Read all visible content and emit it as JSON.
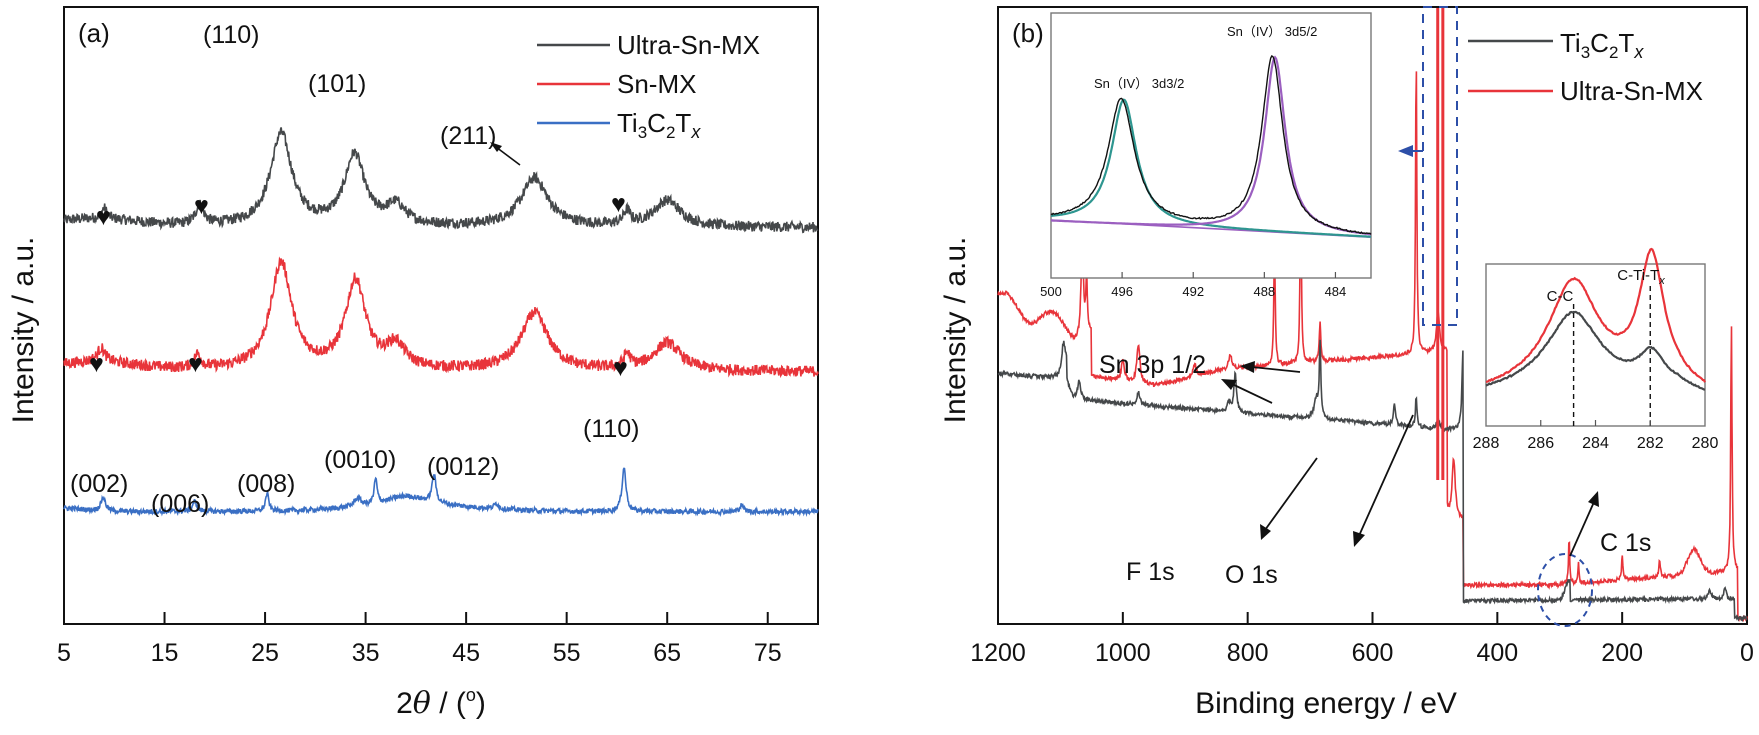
{
  "chart_data": [
    {
      "panel": "(a)",
      "type": "line",
      "title": "",
      "xlabel": "2θ / (°)",
      "ylabel": "Intensity / a.u.",
      "xlim": [
        5,
        80
      ],
      "xticks": [
        5,
        15,
        25,
        35,
        45,
        55,
        65,
        75
      ],
      "yticks": [],
      "grid": false,
      "legend_position": "top-right",
      "series": [
        {
          "name": "Ultra-Sn-MX",
          "color": "#45484a",
          "baseline_offset": 2.0,
          "peaks": [
            {
              "x": 9.0,
              "height": 0.12,
              "width": 0.4
            },
            {
              "x": 18.5,
              "height": 0.22,
              "width": 0.6
            },
            {
              "x": 26.6,
              "height": 1.05,
              "width": 1.6
            },
            {
              "x": 33.9,
              "height": 0.8,
              "width": 1.5
            },
            {
              "x": 38.0,
              "height": 0.22,
              "width": 1.4
            },
            {
              "x": 51.8,
              "height": 0.55,
              "width": 2.0
            },
            {
              "x": 61.0,
              "height": 0.15,
              "width": 0.5
            },
            {
              "x": 65.0,
              "height": 0.3,
              "width": 2.0
            }
          ]
        },
        {
          "name": "Sn-MX",
          "color": "#e8343a",
          "baseline_offset": 1.0,
          "peaks": [
            {
              "x": 8.7,
              "height": 0.15,
              "width": 0.6
            },
            {
              "x": 18.3,
              "height": 0.15,
              "width": 0.5
            },
            {
              "x": 26.6,
              "height": 1.15,
              "width": 1.6
            },
            {
              "x": 34.0,
              "height": 0.95,
              "width": 1.5
            },
            {
              "x": 38.0,
              "height": 0.25,
              "width": 1.4
            },
            {
              "x": 51.8,
              "height": 0.62,
              "width": 2.0
            },
            {
              "x": 61.0,
              "height": 0.15,
              "width": 0.5
            },
            {
              "x": 65.0,
              "height": 0.3,
              "width": 2.0
            }
          ]
        },
        {
          "name": "Ti3C2Tx",
          "color": "#3a6fc4",
          "baseline_offset": 0.0,
          "peaks": [
            {
              "x": 8.9,
              "height": 0.25,
              "width": 0.35
            },
            {
              "x": 18.0,
              "height": 0.18,
              "width": 0.35
            },
            {
              "x": 25.2,
              "height": 0.32,
              "width": 0.25
            },
            {
              "x": 34.2,
              "height": 0.15,
              "width": 0.5
            },
            {
              "x": 36.0,
              "height": 0.45,
              "width": 0.22
            },
            {
              "x": 41.8,
              "height": 0.5,
              "width": 0.3
            },
            {
              "x": 39.0,
              "height": 0.18,
              "width": 3.0
            },
            {
              "x": 48.0,
              "height": 0.1,
              "width": 0.3
            },
            {
              "x": 60.7,
              "height": 0.8,
              "width": 0.3
            },
            {
              "x": 72.4,
              "height": 0.12,
              "width": 0.3
            }
          ]
        }
      ],
      "legend": [
        {
          "label": "Ultra-Sn-MX",
          "color": "#45484a"
        },
        {
          "label": "Sn-MX",
          "color": "#e8343a"
        },
        {
          "label": "Ti3C2Tx",
          "color": "#3a6fc4"
        }
      ],
      "annotations": [
        {
          "text": "(110)",
          "x": 19.5,
          "series": "Ultra-Sn-MX"
        },
        {
          "text": "(101)",
          "x": 32.5,
          "series": "Ultra-Sn-MX"
        },
        {
          "text": "(211)",
          "x": 46.5,
          "series": "Ultra-Sn-MX",
          "arrow_to": 51.0
        },
        {
          "text": "♥",
          "x": 9.0,
          "series": "Ultra-Sn-MX"
        },
        {
          "text": "♥",
          "x": 18.8,
          "series": "Ultra-Sn-MX"
        },
        {
          "text": "♥",
          "x": 60.7,
          "series": "Ultra-Sn-MX"
        },
        {
          "text": "♥",
          "x": 8.4,
          "series": "Sn-MX"
        },
        {
          "text": "♥",
          "x": 18.3,
          "series": "Sn-MX"
        },
        {
          "text": "♥",
          "x": 61.0,
          "series": "Sn-MX"
        },
        {
          "text": "(002)",
          "x": 8.5,
          "series": "Ti3C2Tx"
        },
        {
          "text": "(006)",
          "x": 16.8,
          "series": "Ti3C2Tx"
        },
        {
          "text": "(008)",
          "x": 25.0,
          "series": "Ti3C2Tx"
        },
        {
          "text": "(0010)",
          "x": 34.5,
          "series": "Ti3C2Tx"
        },
        {
          "text": "(0012)",
          "x": 45.0,
          "series": "Ti3C2Tx"
        },
        {
          "text": "(110)",
          "x": 60.5,
          "series": "Ti3C2Tx"
        }
      ],
      "panel_label": "(a)"
    },
    {
      "panel": "(b)",
      "type": "line",
      "title": "",
      "xlabel": "Binding energy / eV",
      "ylabel": "Intensity / a.u.",
      "xlim": [
        1200,
        0
      ],
      "xticks": [
        1200,
        1000,
        800,
        600,
        400,
        200,
        0
      ],
      "yticks": [],
      "grid": false,
      "legend_position": "top-right",
      "series": [
        {
          "name": "Ti3C2Tx",
          "color": "#45484a"
        },
        {
          "name": "Ultra-Sn-MX",
          "color": "#e8343a"
        }
      ],
      "legend": [
        {
          "label": "Ti3C2Tx",
          "color": "#45484a"
        },
        {
          "label": "Ultra-Sn-MX",
          "color": "#e8343a"
        }
      ],
      "annotations": [
        {
          "text": "Sn 3p 1/2",
          "targets": [
            715,
            757
          ]
        },
        {
          "text": "F 1s",
          "target": 685
        },
        {
          "text": "O 1s",
          "target": 530
        },
        {
          "text": "C 1s",
          "target": 285
        }
      ],
      "insets": [
        {
          "name": "Sn 3d high-resolution",
          "xlim": [
            500,
            482
          ],
          "xticks": [
            500,
            496,
            492,
            488,
            484
          ],
          "peaks": [
            {
              "label": "Sn（IV） 3d3/2",
              "x": 495.9,
              "fit_color": "#2e9690"
            },
            {
              "label": "Sn（IV） 3d5/2",
              "x": 487.4,
              "fit_color": "#9b5fc0"
            }
          ],
          "data_color": "#111111"
        },
        {
          "name": "C 1s high-resolution",
          "xlim": [
            288,
            280
          ],
          "xticks": [
            288,
            286,
            284,
            282,
            280
          ],
          "peaks": [
            {
              "label": "C-C",
              "x": 284.8
            },
            {
              "label": "C-Ti-Tx",
              "x": 282.0
            }
          ],
          "series": [
            {
              "name": "Ultra-Sn-MX",
              "color": "#e8343a"
            },
            {
              "name": "Ti3C2Tx",
              "color": "#45484a"
            }
          ]
        }
      ],
      "panel_label": "(b)"
    }
  ],
  "labels": {
    "a": {
      "panel": "(a)",
      "xlabel_pre": "2",
      "xlabel_theta": "θ",
      "xlabel_post": " / (",
      "xlabel_deg": "o",
      "xlabel_close": ")",
      "ylabel": "Intensity / a.u.",
      "ticks": [
        "5",
        "15",
        "25",
        "35",
        "45",
        "55",
        "65",
        "75"
      ],
      "legend": [
        "Ultra-Sn-MX",
        "Sn-MX",
        "Ti",
        "3",
        "C",
        "2",
        "T",
        "x"
      ],
      "ann": [
        "(110)",
        "(101)",
        "(211)",
        "(002)",
        "(006)",
        "(008)",
        "(0010)",
        "(0012)",
        "(110)"
      ],
      "heart": "♥"
    },
    "b": {
      "panel": "(b)",
      "xlabel": "Binding energy / eV",
      "ylabel": "Intensity / a.u.",
      "ticks": [
        "1200",
        "1000",
        "800",
        "600",
        "400",
        "200",
        "0"
      ],
      "legend": [
        "Ti",
        "3",
        "C",
        "2",
        "T",
        "x",
        "Ultra-Sn-MX"
      ],
      "sn3p": "Sn 3p 1/2",
      "f1s": "F 1s",
      "o1s": "O 1s",
      "c1s": "C 1s",
      "inset1_ticks": [
        "500",
        "496",
        "492",
        "488",
        "484"
      ],
      "inset1_a": "Sn（IV）  3d3/2",
      "inset1_b": "Sn（IV）  3d5/2",
      "inset2_ticks": [
        "288",
        "286",
        "284",
        "282",
        "280"
      ],
      "inset2_a": "C-C",
      "inset2_b": "C-Ti-T",
      "inset2_b_sub": "x"
    }
  }
}
